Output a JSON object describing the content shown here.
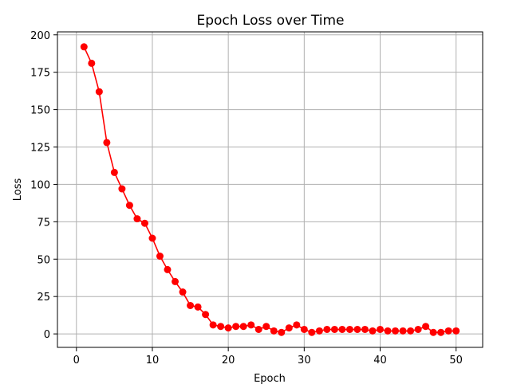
{
  "chart_data": {
    "type": "line",
    "title": "Epoch Loss over Time",
    "xlabel": "Epoch",
    "ylabel": "Loss",
    "xlim": [
      -2.5,
      53.5
    ],
    "ylim": [
      -9,
      202
    ],
    "xticks": [
      0,
      10,
      20,
      30,
      40,
      50
    ],
    "yticks": [
      0,
      25,
      50,
      75,
      100,
      125,
      150,
      175,
      200
    ],
    "grid": true,
    "legend": "none",
    "color": "#ff0000",
    "series": [
      {
        "x": [
          1,
          2,
          3,
          4,
          5,
          6,
          7,
          8,
          9,
          10,
          11,
          12,
          13,
          14,
          15,
          16,
          17,
          18,
          19,
          20,
          21,
          22,
          23,
          24,
          25,
          26,
          27,
          28,
          29,
          30,
          31,
          32,
          33,
          34,
          35,
          36,
          37,
          38,
          39,
          40,
          41,
          42,
          43,
          44,
          45,
          46,
          47,
          48,
          49,
          50
        ],
        "values": [
          192,
          181,
          162,
          128,
          108,
          97,
          86,
          77,
          74,
          64,
          52,
          43,
          35,
          28,
          19,
          18,
          13,
          6,
          5,
          4,
          5,
          5,
          6,
          3,
          5,
          2,
          1,
          4,
          6,
          3,
          1,
          2,
          3,
          3,
          3,
          3,
          3,
          3,
          2,
          3,
          2,
          2,
          2,
          2,
          3,
          5,
          1,
          1,
          2,
          2
        ]
      }
    ]
  }
}
